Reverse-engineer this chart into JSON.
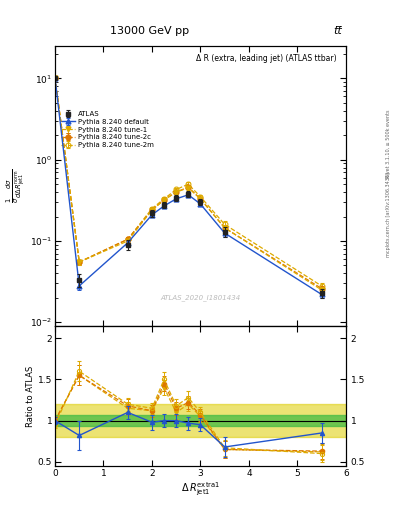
{
  "title_top": "13000 GeV pp",
  "title_right": "tt̅",
  "plot_title": "Δ R (extra, leading jet) (ATLAS ttbar)",
  "watermark": "ATLAS_2020_I1801434",
  "right_label_line1": "Rivet 3.1.10, ≥ 500k events",
  "right_label_line2": "mcplots.cern.ch [arXiv:1306.3436]",
  "xdata": [
    0.0,
    0.5,
    1.5,
    2.0,
    2.25,
    2.5,
    2.75,
    3.0,
    3.5,
    5.5
  ],
  "atlas_y": [
    10.2,
    0.033,
    0.09,
    0.22,
    0.28,
    0.34,
    0.38,
    0.3,
    0.13,
    0.023
  ],
  "atlas_yerr": [
    0.4,
    0.006,
    0.012,
    0.022,
    0.025,
    0.03,
    0.03,
    0.025,
    0.018,
    0.003
  ],
  "py_default_y": [
    10.2,
    0.028,
    0.095,
    0.21,
    0.27,
    0.33,
    0.37,
    0.285,
    0.125,
    0.022
  ],
  "py_default_yerr": [
    0.15,
    0.003,
    0.006,
    0.012,
    0.014,
    0.018,
    0.02,
    0.016,
    0.012,
    0.002
  ],
  "py_tune1_y": [
    10.2,
    0.055,
    0.1,
    0.24,
    0.32,
    0.4,
    0.45,
    0.33,
    0.145,
    0.025
  ],
  "py_tune1_yerr": [
    0.15,
    0.004,
    0.007,
    0.013,
    0.016,
    0.02,
    0.022,
    0.018,
    0.013,
    0.002
  ],
  "py_tune2c_y": [
    10.2,
    0.055,
    0.105,
    0.24,
    0.32,
    0.4,
    0.46,
    0.33,
    0.145,
    0.026
  ],
  "py_tune2c_yerr": [
    0.15,
    0.004,
    0.007,
    0.013,
    0.016,
    0.02,
    0.022,
    0.018,
    0.013,
    0.002
  ],
  "py_tune2m_y": [
    10.2,
    0.055,
    0.105,
    0.25,
    0.33,
    0.43,
    0.5,
    0.35,
    0.16,
    0.028
  ],
  "py_tune2m_yerr": [
    0.15,
    0.004,
    0.007,
    0.014,
    0.017,
    0.022,
    0.025,
    0.019,
    0.014,
    0.002
  ],
  "ratio_x": [
    0.0,
    0.5,
    1.5,
    2.0,
    2.25,
    2.5,
    2.75,
    3.0,
    3.5,
    5.5
  ],
  "ratio_default": [
    1.0,
    0.82,
    1.1,
    0.98,
    1.0,
    1.0,
    0.97,
    0.95,
    0.68,
    0.85
  ],
  "ratio_default_err": [
    0.04,
    0.18,
    0.08,
    0.09,
    0.08,
    0.08,
    0.08,
    0.08,
    0.12,
    0.12
  ],
  "ratio_tune1": [
    1.0,
    1.55,
    1.15,
    1.12,
    1.4,
    1.1,
    1.2,
    1.05,
    0.65,
    0.62
  ],
  "ratio_tune1_err": [
    0.04,
    0.12,
    0.08,
    0.07,
    0.09,
    0.08,
    0.08,
    0.07,
    0.1,
    0.1
  ],
  "ratio_tune2c": [
    1.0,
    1.55,
    1.18,
    1.12,
    1.45,
    1.15,
    1.22,
    1.07,
    0.65,
    0.63
  ],
  "ratio_tune2c_err": [
    0.04,
    0.12,
    0.08,
    0.07,
    0.09,
    0.08,
    0.08,
    0.07,
    0.1,
    0.1
  ],
  "ratio_tune2m": [
    0.95,
    1.6,
    1.2,
    1.15,
    1.5,
    1.18,
    1.28,
    1.1,
    0.67,
    0.6
  ],
  "ratio_tune2m_err": [
    0.04,
    0.12,
    0.08,
    0.07,
    0.09,
    0.08,
    0.08,
    0.07,
    0.1,
    0.1
  ],
  "color_atlas": "#222222",
  "color_default": "#2255cc",
  "color_tune1": "#ddaa00",
  "color_tune2c": "#dd7700",
  "color_tune2m": "#ddaa00",
  "color_green": "#44bb44",
  "color_yellow": "#ddcc00",
  "color_watermark": "#bbbbbb",
  "ylim_main": [
    0.009,
    25.0
  ],
  "ylim_ratio": [
    0.45,
    2.15
  ],
  "xlim": [
    0.0,
    6.0
  ],
  "xticks": [
    0,
    1,
    2,
    3,
    4,
    5,
    6
  ]
}
